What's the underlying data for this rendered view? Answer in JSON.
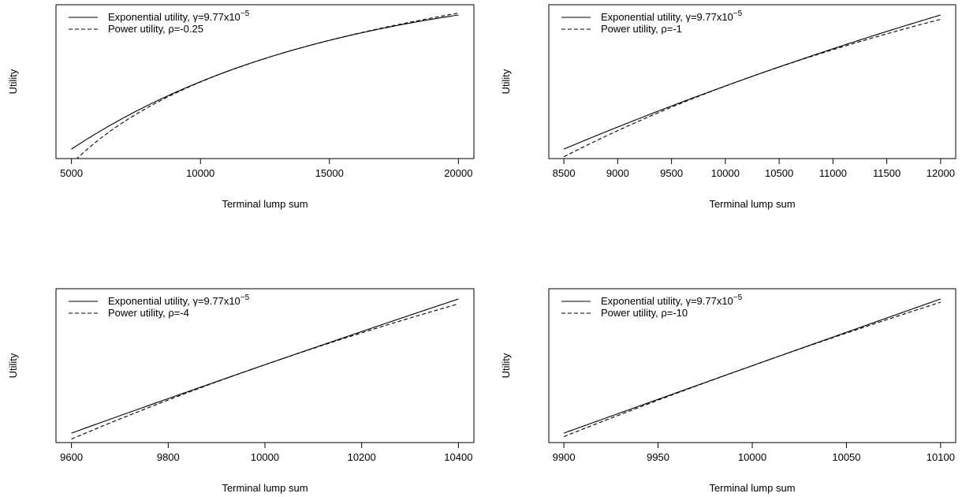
{
  "chart_data": [
    {
      "type": "line",
      "xlabel": "Terminal lump sum",
      "ylabel": "Utility",
      "xlim": [
        5000,
        20000
      ],
      "xticks": [
        5000,
        10000,
        15000,
        20000
      ],
      "xtick_labels": [
        "5000",
        "10000",
        "15000",
        "20000"
      ],
      "legend_position": "top-left",
      "series": [
        {
          "name_prefix": "Exponential utility,  ",
          "name_symbol": "γ",
          "name_value": "=9.77x10",
          "name_exponent": "−5",
          "line_style": "solid",
          "gamma": 9.77e-05
        },
        {
          "name_prefix": "Power utility, ",
          "name_symbol": "ρ",
          "name_value": "=-0.25",
          "name_exponent": "",
          "line_style": "dashed",
          "rho": -0.25
        }
      ]
    },
    {
      "type": "line",
      "xlabel": "Terminal lump sum",
      "ylabel": "Utility",
      "xlim": [
        8500,
        12000
      ],
      "xticks": [
        8500,
        9000,
        9500,
        10000,
        10500,
        11000,
        11500,
        12000
      ],
      "xtick_labels": [
        "8500",
        "9000",
        "9500",
        "10000",
        "10500",
        "11000",
        "11500",
        "12000"
      ],
      "legend_position": "top-left",
      "series": [
        {
          "name_prefix": "Exponential utility,  ",
          "name_symbol": "γ",
          "name_value": "=9.77x10",
          "name_exponent": "−5",
          "line_style": "solid",
          "gamma": 9.77e-05
        },
        {
          "name_prefix": "Power utility, ",
          "name_symbol": "ρ",
          "name_value": "=-1",
          "name_exponent": "",
          "line_style": "dashed",
          "rho": -1
        }
      ]
    },
    {
      "type": "line",
      "xlabel": "Terminal lump sum",
      "ylabel": "Utility",
      "xlim": [
        9600,
        10400
      ],
      "xticks": [
        9600,
        9800,
        10000,
        10200,
        10400
      ],
      "xtick_labels": [
        "9600",
        "9800",
        "10000",
        "10200",
        "10400"
      ],
      "legend_position": "top-left",
      "series": [
        {
          "name_prefix": "Exponential utility,  ",
          "name_symbol": "γ",
          "name_value": "=9.77x10",
          "name_exponent": "−5",
          "line_style": "solid",
          "gamma": 9.77e-05
        },
        {
          "name_prefix": "Power utility, ",
          "name_symbol": "ρ",
          "name_value": "=-4",
          "name_exponent": "",
          "line_style": "dashed",
          "rho": -4
        }
      ]
    },
    {
      "type": "line",
      "xlabel": "Terminal lump sum",
      "ylabel": "Utility",
      "xlim": [
        9900,
        10100
      ],
      "xticks": [
        9900,
        9950,
        10000,
        10050,
        10100
      ],
      "xtick_labels": [
        "9900",
        "9950",
        "10000",
        "10050",
        "10100"
      ],
      "legend_position": "top-left",
      "series": [
        {
          "name_prefix": "Exponential utility,  ",
          "name_symbol": "γ",
          "name_value": "=9.77x10",
          "name_exponent": "−5",
          "line_style": "solid",
          "gamma": 9.77e-05
        },
        {
          "name_prefix": "Power utility, ",
          "name_symbol": "ρ",
          "name_value": "=-10",
          "name_exponent": "",
          "line_style": "dashed",
          "rho": -10
        }
      ]
    }
  ]
}
